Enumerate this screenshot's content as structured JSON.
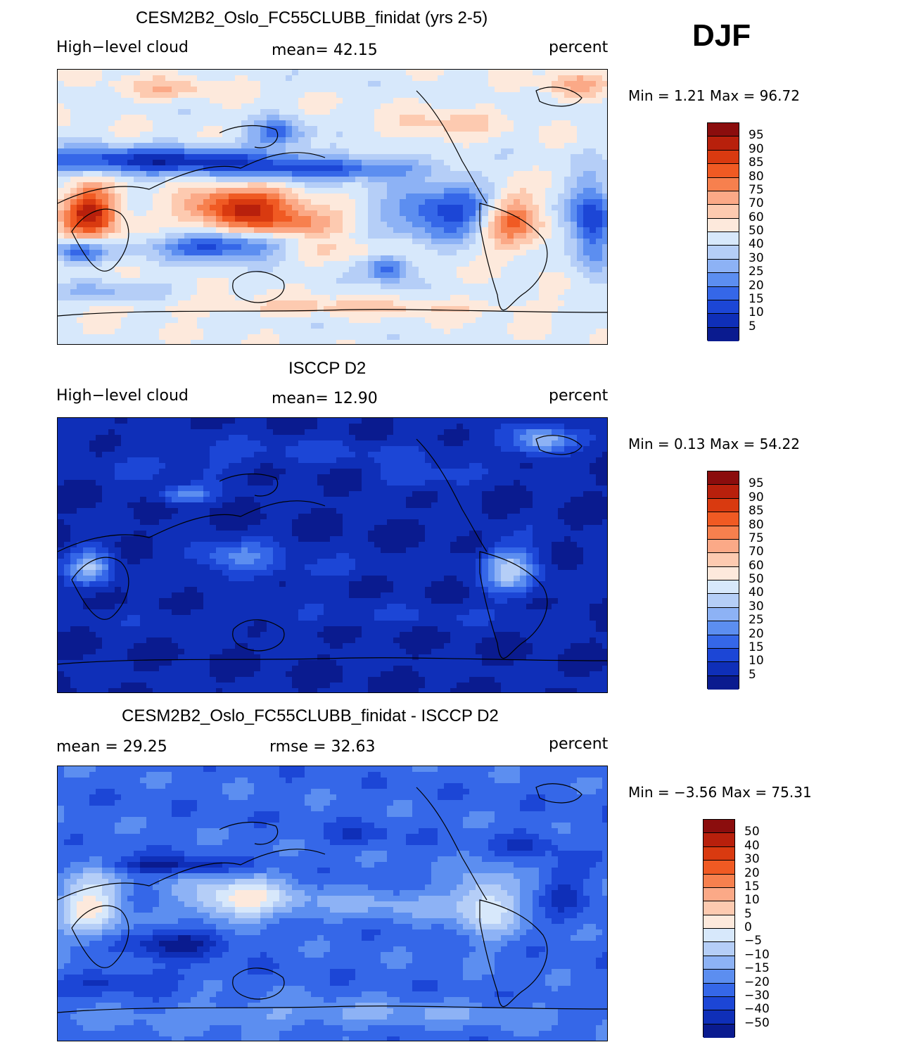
{
  "season": "DJF",
  "panels": [
    {
      "title": "CESM2B2_Oslo_FC55CLUBB_finidat (yrs 2-5)",
      "left_label": "High−level cloud",
      "center_label": "mean=   42.15",
      "right_label": "percent",
      "minmax": "Min =    1.21  Max =   96.72",
      "field": "model",
      "colorbar": {
        "labels": [
          "95",
          "90",
          "85",
          "80",
          "75",
          "70",
          "60",
          "50",
          "40",
          "30",
          "25",
          "20",
          "15",
          "10",
          "5"
        ],
        "colors": [
          "#8b0d0d",
          "#b8200c",
          "#d93a10",
          "#f05a23",
          "#f7804e",
          "#fba987",
          "#fdcab0",
          "#fde9dc",
          "#d7e8fb",
          "#b5cef7",
          "#8db2f5",
          "#5c8ef0",
          "#3567e8",
          "#1c46d6",
          "#0f2fb8",
          "#0a1b8f"
        ]
      },
      "map_caption": "Global high-level cloud fraction, model DJF"
    },
    {
      "title": "ISCCP D2",
      "left_label": "High−level cloud",
      "center_label": "mean=   12.90",
      "right_label": "percent",
      "minmax": "Min =    0.13  Max =   54.22",
      "field": "obs",
      "colorbar": {
        "labels": [
          "95",
          "90",
          "85",
          "80",
          "75",
          "70",
          "60",
          "50",
          "40",
          "30",
          "25",
          "20",
          "15",
          "10",
          "5"
        ],
        "colors": [
          "#8b0d0d",
          "#b8200c",
          "#d93a10",
          "#f05a23",
          "#f7804e",
          "#fba987",
          "#fdcab0",
          "#fde9dc",
          "#d7e8fb",
          "#b5cef7",
          "#8db2f5",
          "#5c8ef0",
          "#3567e8",
          "#1c46d6",
          "#0f2fb8",
          "#0a1b8f"
        ]
      },
      "map_caption": "Global high-level cloud fraction, ISCCP DJF"
    },
    {
      "title": "CESM2B2_Oslo_FC55CLUBB_finidat - ISCCP D2",
      "left_label": "mean =   29.25",
      "center_label": "rmse =   32.63",
      "right_label": "percent",
      "minmax": "Min =  −3.56  Max =   75.31",
      "field": "diff",
      "colorbar": {
        "labels": [
          "50",
          "40",
          "30",
          "20",
          "15",
          "10",
          "5",
          "0",
          "−5",
          "−10",
          "−15",
          "−20",
          "−30",
          "−40",
          "−50"
        ],
        "colors": [
          "#8b0d0d",
          "#b8200c",
          "#d93a10",
          "#f05a23",
          "#f7804e",
          "#fba987",
          "#fdcab0",
          "#fde9dc",
          "#d7e8fb",
          "#b5cef7",
          "#8db2f5",
          "#5c8ef0",
          "#3567e8",
          "#1c46d6",
          "#0f2fb8",
          "#0a1b8f"
        ]
      },
      "map_caption": "Global high-level cloud difference, model minus ISCCP DJF"
    }
  ]
}
